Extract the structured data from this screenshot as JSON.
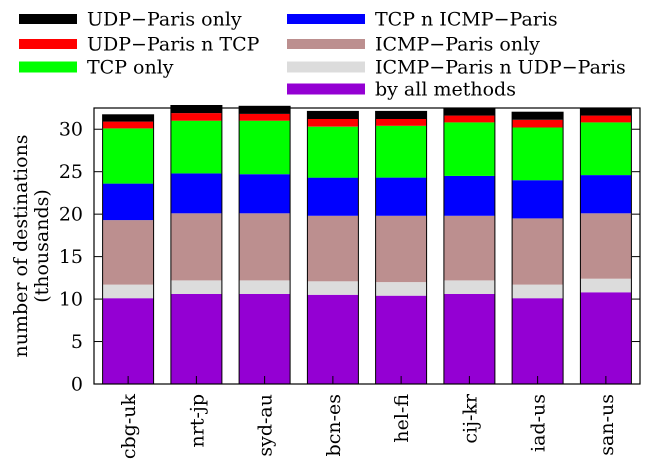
{
  "chart_data": {
    "type": "bar",
    "stacked": true,
    "categories": [
      "cbg-uk",
      "nrt-jp",
      "syd-au",
      "bcn-es",
      "hel-fi",
      "cij-kr",
      "iad-us",
      "san-us"
    ],
    "ylabel_lines": [
      "number of destinations",
      "(thousands)"
    ],
    "xlabel": "",
    "ylim": [
      0,
      32.5
    ],
    "yticks": [
      0,
      5,
      10,
      15,
      20,
      25,
      30
    ],
    "grid": false,
    "legend_position": "top",
    "series": [
      {
        "name": "by all methods",
        "color": "#9400d3",
        "values": [
          10.1,
          10.6,
          10.6,
          10.5,
          10.4,
          10.6,
          10.1,
          10.8
        ]
      },
      {
        "name": "ICMP−Paris n UDP−Paris",
        "color": "#dcdcdc",
        "values": [
          1.6,
          1.6,
          1.6,
          1.6,
          1.6,
          1.6,
          1.6,
          1.6
        ]
      },
      {
        "name": "ICMP−Paris only",
        "color": "#bc8f8f",
        "values": [
          7.6,
          7.9,
          7.9,
          7.7,
          7.8,
          7.6,
          7.8,
          7.7
        ]
      },
      {
        "name": "TCP n ICMP−Paris",
        "color": "#0000ff",
        "values": [
          4.3,
          4.7,
          4.6,
          4.5,
          4.5,
          4.7,
          4.5,
          4.5
        ]
      },
      {
        "name": "TCP only",
        "color": "#00ff00",
        "values": [
          6.5,
          6.2,
          6.3,
          6.0,
          6.1,
          6.3,
          6.2,
          6.2
        ]
      },
      {
        "name": "UDP−Paris n TCP",
        "color": "#ff0000",
        "values": [
          0.8,
          0.9,
          0.8,
          0.9,
          0.8,
          0.8,
          0.9,
          0.8
        ]
      },
      {
        "name": "UDP−Paris only",
        "color": "#000000",
        "values": [
          0.8,
          0.9,
          0.9,
          0.9,
          0.9,
          0.8,
          0.9,
          0.9
        ]
      }
    ]
  }
}
